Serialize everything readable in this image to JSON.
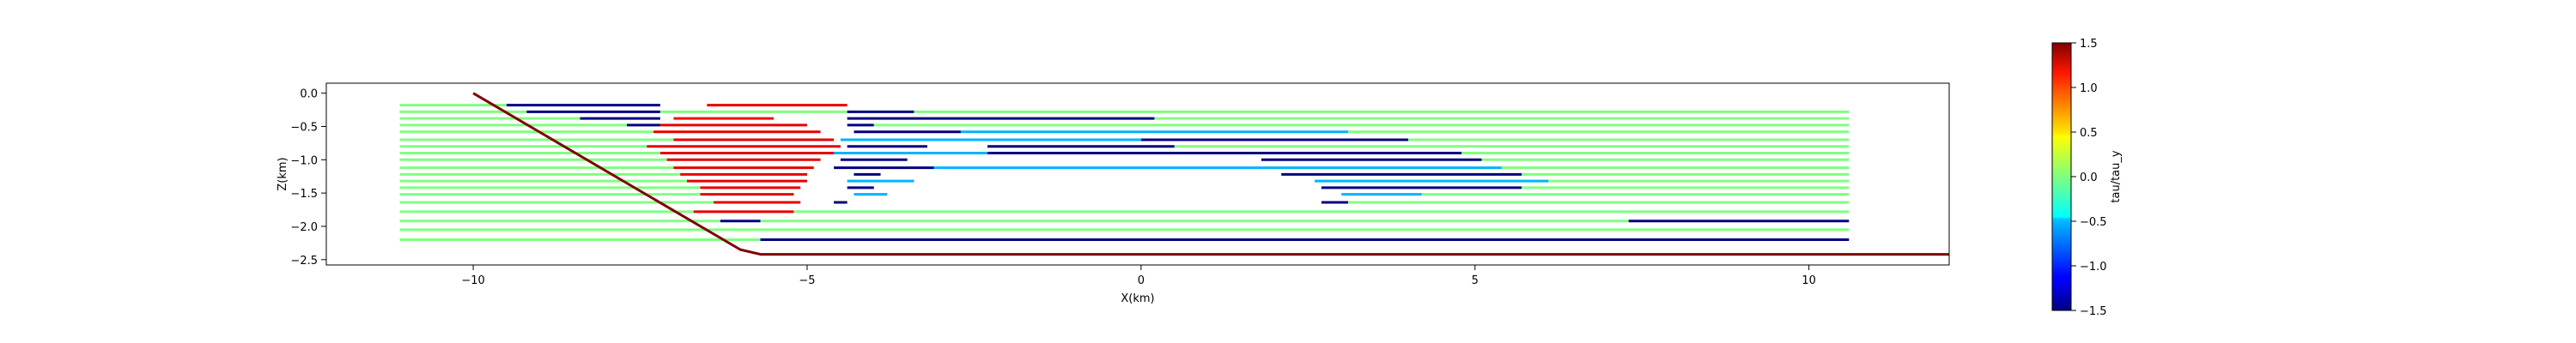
{
  "chart_data": {
    "type": "line",
    "xlabel": "X(km)",
    "ylabel": "Z(km)",
    "xlim": [
      -12.2,
      12.1
    ],
    "ylim": [
      -2.58,
      0.15
    ],
    "xticks": [
      -10,
      -5,
      0,
      5,
      10
    ],
    "xtick_labels": [
      "−10",
      "−5",
      "0",
      "5",
      "10"
    ],
    "yticks": [
      0.0,
      -0.5,
      -1.0,
      -1.5,
      -2.0,
      -2.5
    ],
    "ytick_labels": [
      "0.0",
      "−0.5",
      "−1.0",
      "−1.5",
      "−2.0",
      "−2.5"
    ],
    "grid": false,
    "colorbar": {
      "label": "tau/tau_y",
      "range": [
        -1.5,
        1.5
      ],
      "ticks": [
        1.5,
        1.0,
        0.5,
        0.0,
        -0.5,
        -1.0,
        -1.5
      ],
      "tick_labels": [
        "1.5",
        "1.0",
        "0.5",
        "0.0",
        "−0.5",
        "−1.0",
        "−1.5"
      ],
      "colormap": "jet"
    },
    "fault": {
      "x": [
        -10.0,
        -6.0,
        -5.7,
        12.1
      ],
      "z": [
        0.0,
        -2.35,
        -2.42,
        -2.42
      ],
      "value": 1.5
    },
    "basal_line": {
      "x": [
        -5.7,
        10.6
      ],
      "z": [
        -2.2,
        -2.2
      ],
      "value": -1.5
    },
    "series": [
      {
        "z": -0.18,
        "segments": [
          [
            -11.1,
            -9.5,
            0.0
          ],
          [
            -9.5,
            -7.2,
            -1.5
          ],
          [
            -6.5,
            -4.4,
            1.2
          ]
        ]
      },
      {
        "z": -0.28,
        "segments": [
          [
            -11.1,
            -9.2,
            0.0
          ],
          [
            -9.2,
            -7.2,
            -1.5
          ],
          [
            -7.2,
            -4.4,
            0.0
          ],
          [
            -4.4,
            -3.4,
            -1.5
          ],
          [
            -3.4,
            10.6,
            0.0
          ]
        ]
      },
      {
        "z": -0.38,
        "segments": [
          [
            -11.1,
            -8.4,
            0.0
          ],
          [
            -8.4,
            -7.2,
            -1.5
          ],
          [
            -7.0,
            -5.5,
            1.1
          ],
          [
            -4.4,
            0.2,
            -1.5
          ],
          [
            0.2,
            10.6,
            0.0
          ]
        ]
      },
      {
        "z": -0.48,
        "segments": [
          [
            -11.1,
            -7.7,
            0.0
          ],
          [
            -7.7,
            -7.2,
            -1.5
          ],
          [
            -7.2,
            -5.0,
            1.2
          ],
          [
            -4.4,
            -4.0,
            -1.5
          ],
          [
            -4.0,
            10.6,
            0.0
          ]
        ]
      },
      {
        "z": -0.58,
        "segments": [
          [
            -11.1,
            -7.3,
            0.0
          ],
          [
            -7.3,
            -4.8,
            1.2
          ],
          [
            -4.3,
            -2.7,
            -1.5
          ],
          [
            -2.7,
            3.1,
            -0.6
          ],
          [
            3.1,
            10.6,
            0.0
          ]
        ]
      },
      {
        "z": -0.7,
        "segments": [
          [
            -11.1,
            -7.0,
            0.0
          ],
          [
            -7.0,
            -4.6,
            1.2
          ],
          [
            -4.5,
            0.0,
            -0.6
          ],
          [
            0.0,
            4.0,
            -1.5
          ],
          [
            4.0,
            10.6,
            0.0
          ]
        ]
      },
      {
        "z": -0.8,
        "segments": [
          [
            -11.1,
            -7.4,
            0.0
          ],
          [
            -7.4,
            -4.5,
            1.2
          ],
          [
            -4.4,
            -3.2,
            -1.5
          ],
          [
            -2.3,
            0.5,
            -1.5
          ],
          [
            0.5,
            10.6,
            0.0
          ]
        ]
      },
      {
        "z": -0.9,
        "segments": [
          [
            -11.1,
            -7.2,
            0.0
          ],
          [
            -7.2,
            -4.5,
            1.2
          ],
          [
            -4.6,
            -2.3,
            -0.6
          ],
          [
            -2.3,
            4.8,
            -1.5
          ],
          [
            4.8,
            10.6,
            0.0
          ]
        ]
      },
      {
        "z": -1.0,
        "segments": [
          [
            -11.1,
            -7.1,
            0.0
          ],
          [
            -7.1,
            -4.8,
            1.2
          ],
          [
            -4.5,
            -3.5,
            -1.5
          ],
          [
            1.8,
            5.1,
            -1.5
          ],
          [
            5.1,
            10.6,
            0.0
          ]
        ]
      },
      {
        "z": -1.12,
        "segments": [
          [
            -11.1,
            -7.0,
            0.0
          ],
          [
            -7.0,
            -4.9,
            1.2
          ],
          [
            -4.6,
            -3.1,
            -1.5
          ],
          [
            -3.1,
            5.4,
            -0.6
          ],
          [
            5.4,
            10.6,
            0.0
          ]
        ]
      },
      {
        "z": -1.22,
        "segments": [
          [
            -11.1,
            -6.9,
            0.0
          ],
          [
            -6.9,
            -5.0,
            1.2
          ],
          [
            -4.3,
            -3.9,
            -1.5
          ],
          [
            2.1,
            5.7,
            -1.5
          ],
          [
            5.7,
            10.6,
            0.0
          ]
        ]
      },
      {
        "z": -1.32,
        "segments": [
          [
            -11.1,
            -6.8,
            0.0
          ],
          [
            -6.8,
            -5.0,
            1.2
          ],
          [
            -4.4,
            -3.4,
            -0.6
          ],
          [
            2.6,
            6.1,
            -0.6
          ],
          [
            6.1,
            10.6,
            0.0
          ]
        ]
      },
      {
        "z": -1.42,
        "segments": [
          [
            -11.1,
            -6.6,
            0.0
          ],
          [
            -6.6,
            -5.1,
            1.2
          ],
          [
            -4.4,
            -4.0,
            -1.5
          ],
          [
            2.7,
            5.7,
            -1.5
          ],
          [
            5.7,
            10.6,
            0.0
          ]
        ]
      },
      {
        "z": -1.52,
        "segments": [
          [
            -11.1,
            -6.6,
            0.0
          ],
          [
            -6.6,
            -5.2,
            1.2
          ],
          [
            -4.3,
            -3.8,
            -0.6
          ],
          [
            3.0,
            4.2,
            -0.6
          ],
          [
            4.2,
            10.6,
            0.0
          ]
        ]
      },
      {
        "z": -1.64,
        "segments": [
          [
            -11.1,
            -6.4,
            0.0
          ],
          [
            -6.4,
            -5.1,
            1.2
          ],
          [
            -4.6,
            -4.4,
            -1.5
          ],
          [
            2.7,
            3.1,
            -1.5
          ],
          [
            3.1,
            10.6,
            0.0
          ]
        ]
      },
      {
        "z": -1.78,
        "segments": [
          [
            -11.1,
            -6.7,
            0.0
          ],
          [
            -6.7,
            -5.2,
            1.2
          ],
          [
            -5.2,
            10.6,
            0.0
          ]
        ]
      },
      {
        "z": -1.92,
        "segments": [
          [
            -11.1,
            -6.3,
            0.0
          ],
          [
            -6.3,
            -5.7,
            -1.5
          ],
          [
            -5.7,
            7.3,
            0.0
          ],
          [
            7.3,
            10.6,
            -1.5
          ]
        ]
      },
      {
        "z": -2.05,
        "segments": [
          [
            -11.1,
            -6.1,
            0.0
          ],
          [
            -6.1,
            10.6,
            0.0
          ]
        ]
      },
      {
        "z": -2.2,
        "segments": [
          [
            -11.1,
            -5.7,
            0.0
          ]
        ]
      }
    ]
  }
}
